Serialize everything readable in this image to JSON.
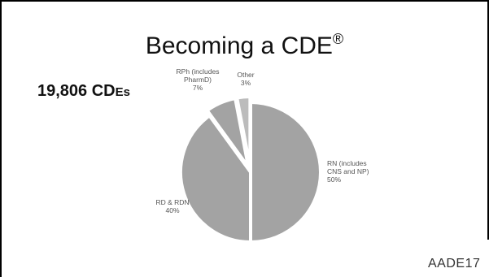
{
  "slide": {
    "title": "Becoming a CDE",
    "title_mark": "®",
    "count_prefix": "19,806 CD",
    "count_suffix": "Es",
    "logo": "AADE17"
  },
  "chart_data": {
    "type": "pie",
    "title": "",
    "slices": [
      {
        "label_lines": [
          "RN (includes",
          "CNS and NP)",
          "50%"
        ],
        "value": 50,
        "color": "#a3a3a3",
        "exploded": false
      },
      {
        "label_lines": [
          "RD & RDN",
          "40%"
        ],
        "value": 40,
        "color": "#a3a3a3",
        "exploded": false
      },
      {
        "label_lines": [
          "RPh (includes",
          "PharmD)",
          "7%"
        ],
        "value": 7,
        "color": "#a3a3a3",
        "exploded": true
      },
      {
        "label_lines": [
          "Other",
          "3%"
        ],
        "value": 3,
        "color": "#bcbcbc",
        "exploded": true
      }
    ],
    "start_angle_deg": 0,
    "direction": "clockwise",
    "separator_color": "#ffffff"
  }
}
